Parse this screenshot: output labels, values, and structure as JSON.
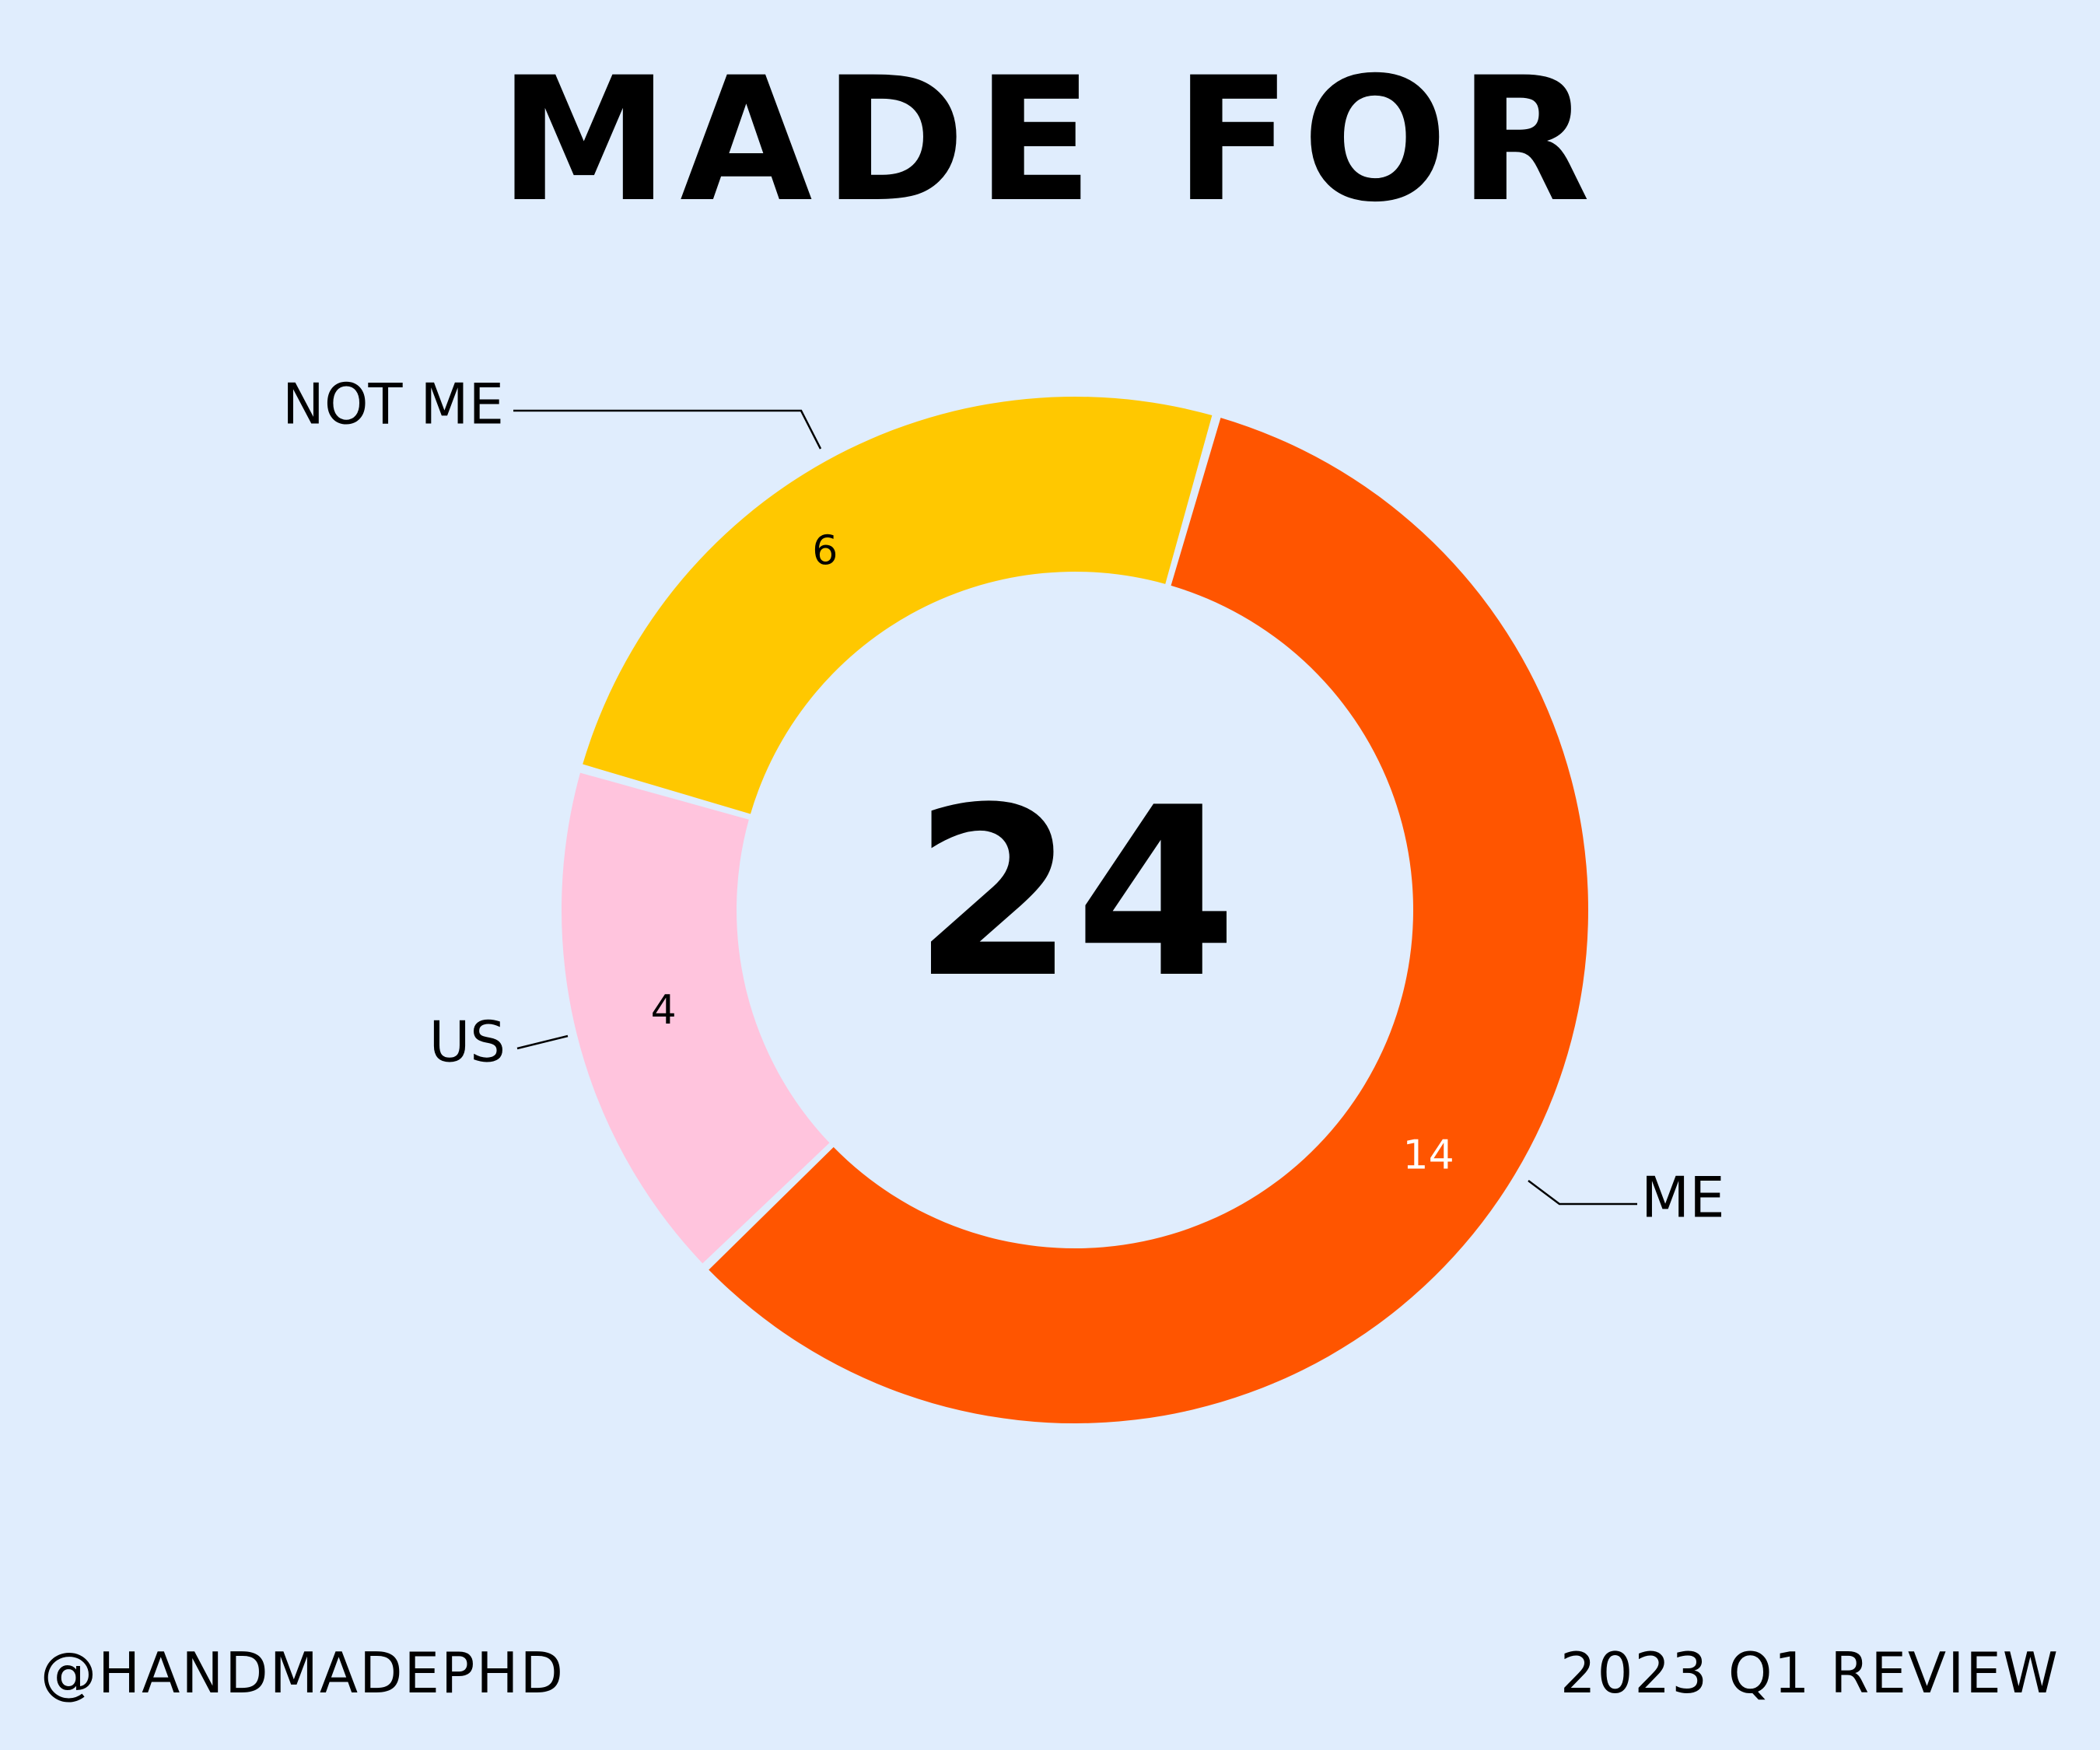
{
  "title": "MADE FOR",
  "footer": {
    "handle": "@HANDMADEPHD",
    "period": "2023 Q1 REVIEW"
  },
  "chart_data": {
    "type": "pie",
    "style": "donut",
    "center_label": "24",
    "slices": [
      {
        "label": "ME",
        "value": 14,
        "color": "#ff5500",
        "value_color": "#ffffff"
      },
      {
        "label": "US",
        "value": 4,
        "color": "#ffc4dd",
        "value_color": "#000000"
      },
      {
        "label": "NOT ME",
        "value": 6,
        "color": "#ffc800",
        "value_color": "#000000"
      }
    ]
  }
}
